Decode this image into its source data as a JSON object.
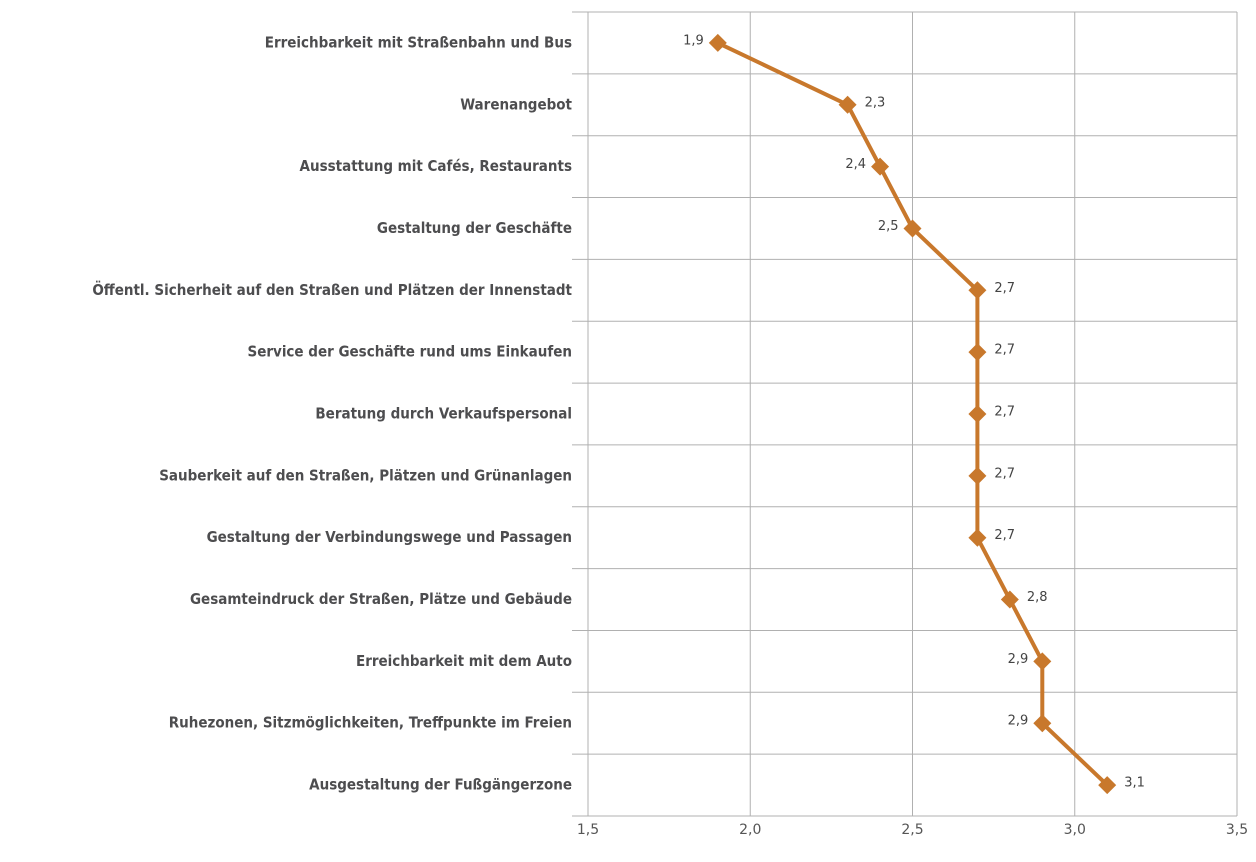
{
  "chart_data": {
    "type": "line",
    "orientation": "horizontal",
    "categories": [
      "Erreichbarkeit mit Straßenbahn und Bus",
      "Warenangebot",
      "Ausstattung mit Cafés, Restaurants",
      "Gestaltung der Geschäfte",
      "Öffentl. Sicherheit auf den Straßen und Plätzen der Innenstadt",
      "Service der Geschäfte rund ums Einkaufen ",
      "Beratung durch Verkaufspersonal",
      "Sauberkeit auf den Straßen, Plätzen und Grünanlagen",
      "Gestaltung der Verbindungswege und Passagen",
      "Gesamteindruck der Straßen, Plätze und Gebäude",
      "Erreichbarkeit mit dem Auto",
      "Ruhezonen, Sitzmöglichkeiten, Treffpunkte im Freien",
      "Ausgestaltung der Fußgängerzone"
    ],
    "values": [
      1.9,
      2.3,
      2.4,
      2.5,
      2.7,
      2.7,
      2.7,
      2.7,
      2.7,
      2.8,
      2.9,
      2.9,
      3.1
    ],
    "value_labels": [
      "1,9",
      "2,3",
      "2,4",
      "2,5",
      "2,7",
      "2,7",
      "2,7",
      "2,7",
      "2,7",
      "2,8",
      "2,9",
      "2,9",
      "3,1"
    ],
    "color": "#c8782c",
    "xlim": [
      1.5,
      3.5
    ],
    "xticks": [
      {
        "value": 1.5,
        "label": "1,5"
      },
      {
        "value": 2.0,
        "label": "2,0"
      },
      {
        "value": 2.5,
        "label": "2,5"
      },
      {
        "value": 3.0,
        "label": "3,0"
      },
      {
        "value": 3.5,
        "label": "3,5"
      }
    ],
    "grid": true
  }
}
